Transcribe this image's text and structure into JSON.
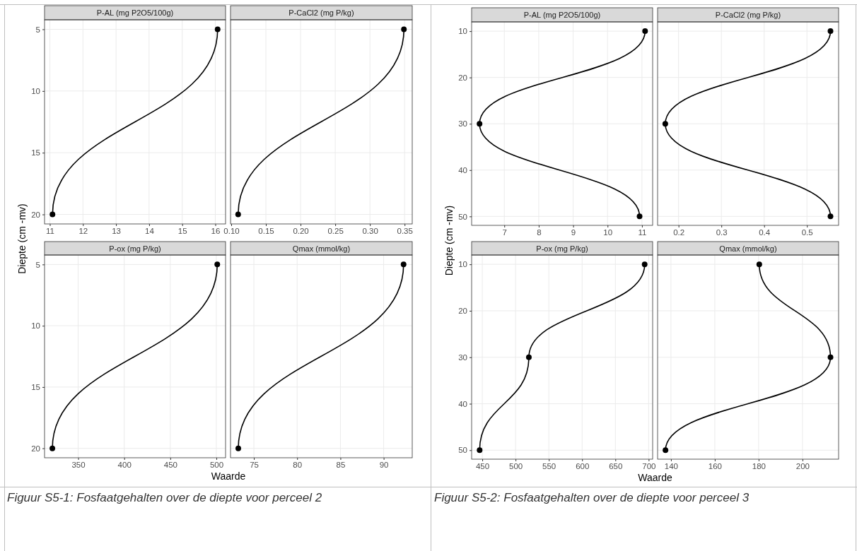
{
  "chart_data": [
    {
      "type": "line",
      "title": "P-AL (mg P2O5/100g)",
      "ylabel": "Diepte (cm -mv)",
      "xlim": [
        10.84,
        16.31
      ],
      "xticks": [
        11,
        12,
        13,
        14,
        15,
        16
      ],
      "ylim": [
        20.77,
        4.23
      ],
      "yticks": [
        5,
        10,
        15,
        20
      ],
      "grid": true,
      "marker": "circle",
      "line_style": "solid",
      "series": [
        {
          "color": "#000000",
          "x": [
            16.07,
            11.08
          ],
          "values": [
            5,
            20
          ]
        }
      ]
    },
    {
      "type": "line",
      "title": "P-CaCl2 (mg P/kg)",
      "xlim": [
        0.099,
        0.361
      ],
      "xticks": [
        {
          "value": 0.1,
          "label": "0.10"
        },
        0.15,
        {
          "value": 0.2,
          "label": "0.20"
        },
        0.25,
        {
          "value": 0.3,
          "label": "0.30"
        },
        0.35
      ],
      "ylim": [
        20.77,
        4.23
      ],
      "yticks": [
        5,
        10,
        15,
        20
      ],
      "tick_labels": "x",
      "grid": true,
      "marker": "circle",
      "line_style": "solid",
      "series": [
        {
          "color": "#000000",
          "x": [
            0.349,
            0.11
          ],
          "values": [
            5,
            20
          ]
        }
      ]
    },
    {
      "type": "line",
      "title": "P-ox (mg P/kg)",
      "xlabel": "Waarde",
      "annotations": [
        "Figuur S5-1: Fosfaatgehalten over de diepte voor perceel 2"
      ],
      "xlim": [
        313.5,
        510
      ],
      "xticks": [
        350,
        400,
        450,
        500
      ],
      "ylim": [
        20.77,
        4.23
      ],
      "yticks": [
        5,
        10,
        15,
        20
      ],
      "grid": true,
      "marker": "circle",
      "line_style": "solid",
      "series": [
        {
          "color": "#000000",
          "x": [
            501,
            322
          ],
          "values": [
            5,
            20
          ]
        }
      ]
    },
    {
      "type": "line",
      "title": "Qmax (mmol/kg)",
      "xlim": [
        72.3,
        93.3
      ],
      "xticks": [
        75,
        80,
        85,
        90
      ],
      "ylim": [
        20.77,
        4.23
      ],
      "yticks": [
        5,
        10,
        15,
        20
      ],
      "tick_labels": "x",
      "grid": true,
      "marker": "circle",
      "line_style": "solid",
      "series": [
        {
          "color": "#000000",
          "x": [
            92.3,
            73.2
          ],
          "values": [
            5,
            20
          ]
        }
      ]
    },
    {
      "type": "line",
      "title": "P-AL (mg P2O5/100g)",
      "ylabel": "Diepte (cm -mv)",
      "xlim": [
        6.05,
        11.31
      ],
      "xticks": [
        7,
        8,
        9,
        10,
        11
      ],
      "ylim": [
        51.93,
        8.0
      ],
      "yticks": [
        10,
        20,
        30,
        40,
        50
      ],
      "grid": true,
      "marker": "circle",
      "line_style": "solid",
      "series": [
        {
          "color": "#000000",
          "x": [
            11.09,
            6.28,
            10.93
          ],
          "values": [
            10,
            30,
            50
          ]
        }
      ]
    },
    {
      "type": "line",
      "title": "P-CaCl2 (mg P/kg)",
      "xlim": [
        0.151,
        0.574
      ],
      "xticks": [
        0.2,
        0.3,
        0.4,
        0.5
      ],
      "ylim": [
        51.93,
        8.0
      ],
      "yticks": [
        10,
        20,
        30,
        40,
        50
      ],
      "tick_labels": "x",
      "grid": true,
      "marker": "circle",
      "line_style": "solid",
      "series": [
        {
          "color": "#000000",
          "x": [
            0.555,
            0.169,
            0.555
          ],
          "values": [
            10,
            30,
            50
          ]
        }
      ]
    },
    {
      "type": "line",
      "title": "P-ox (mg P/kg)",
      "xlabel": "Waarde",
      "annotations": [
        "Figuur S5-2: Fosfaatgehalten over de diepte voor perceel 3"
      ],
      "xlim": [
        434,
        706
      ],
      "xticks": [
        450,
        500,
        550,
        600,
        650,
        700
      ],
      "ylim": [
        51.93,
        8.0
      ],
      "yticks": [
        10,
        20,
        30,
        40,
        50
      ],
      "grid": true,
      "marker": "circle",
      "line_style": "solid",
      "series": [
        {
          "color": "#000000",
          "x": [
            694,
            520,
            446
          ],
          "values": [
            10,
            30,
            50
          ]
        }
      ]
    },
    {
      "type": "line",
      "title": "Qmax (mmol/kg)",
      "xlim": [
        133.9,
        216.5
      ],
      "xticks": [
        140,
        160,
        180,
        200
      ],
      "ylim": [
        51.93,
        8.0
      ],
      "yticks": [
        10,
        20,
        30,
        40,
        50
      ],
      "tick_labels": "x",
      "grid": true,
      "marker": "circle",
      "line_style": "solid",
      "series": [
        {
          "color": "#000000",
          "x": [
            180.3,
            212.8,
            137.5
          ],
          "values": [
            10,
            30,
            50
          ]
        }
      ]
    }
  ]
}
